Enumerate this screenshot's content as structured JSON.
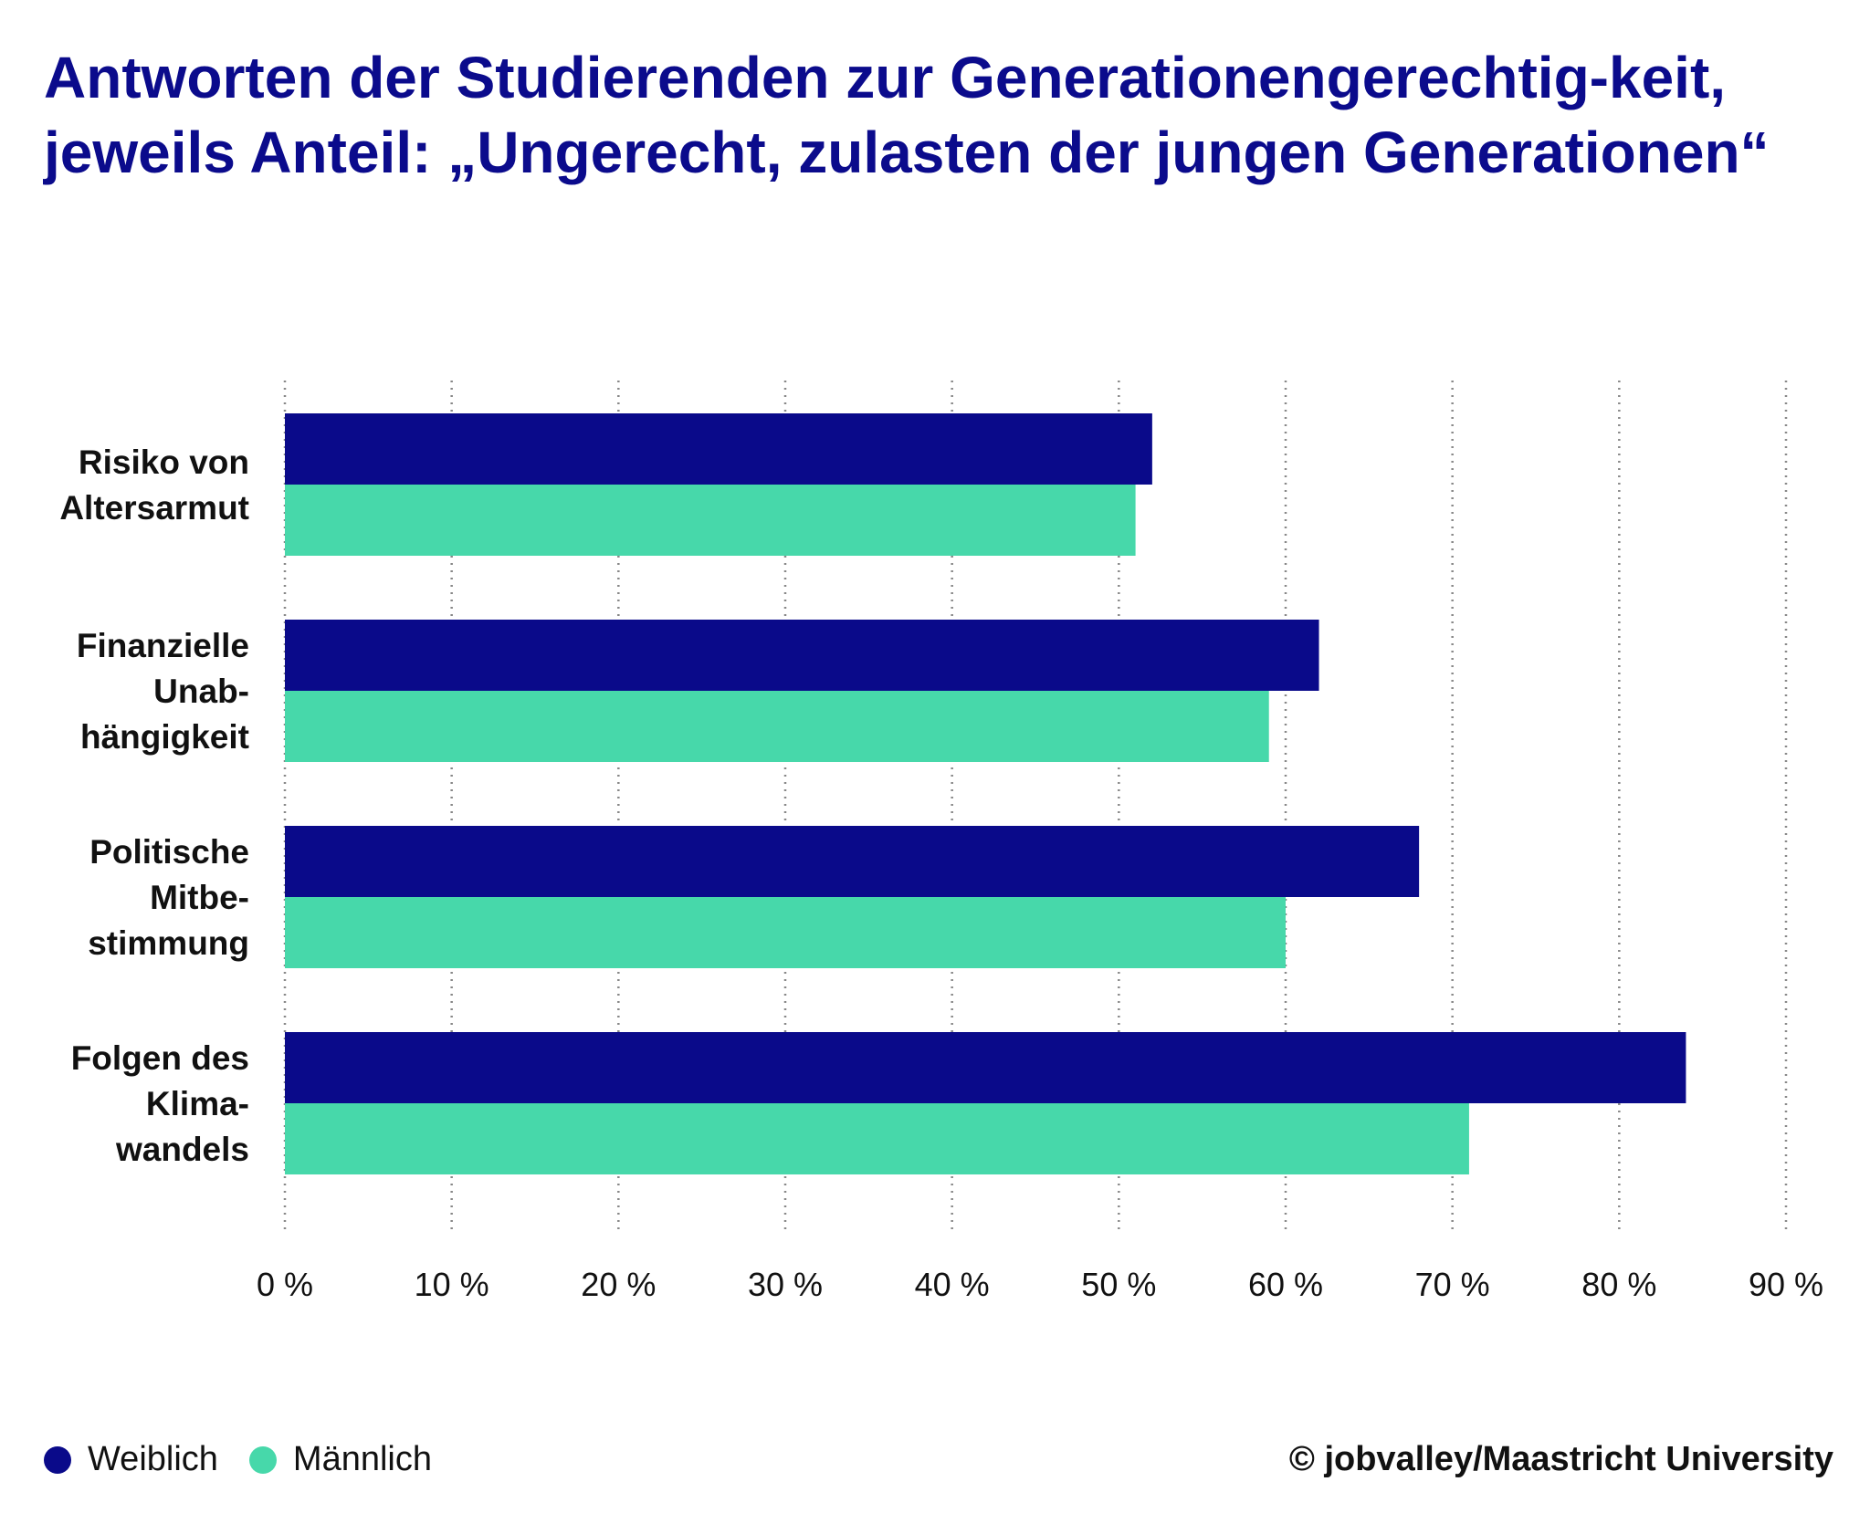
{
  "chart_data": {
    "type": "bar",
    "orientation": "horizontal",
    "title": "Antworten der Studierenden zur Generationengerechtig-keit, jeweils Anteil: „Ungerecht, zulasten der jungen Generationen“",
    "categories": [
      [
        "Risiko von",
        "Altersarmut"
      ],
      [
        "Finanzielle",
        "Unab-",
        "hängigkeit"
      ],
      [
        "Politische",
        "Mitbe-",
        "stimmung"
      ],
      [
        "Folgen des",
        "Klima-",
        "wandels"
      ]
    ],
    "series": [
      {
        "name": "Weiblich",
        "color": "#0a0a8a",
        "values": [
          52,
          62,
          68,
          84
        ]
      },
      {
        "name": "Männlich",
        "color": "#47d8aa",
        "values": [
          51,
          59,
          60,
          71
        ]
      }
    ],
    "xlim": [
      0,
      90
    ],
    "xticks": [
      "0 %",
      "10 %",
      "20 %",
      "30 %",
      "40 %",
      "50 %",
      "60 %",
      "70 %",
      "80 %",
      "90 %"
    ],
    "unit": "%",
    "grid": "vertical dotted",
    "legend": "bottom-left"
  },
  "credit": "© jobvalley/Maastricht University"
}
